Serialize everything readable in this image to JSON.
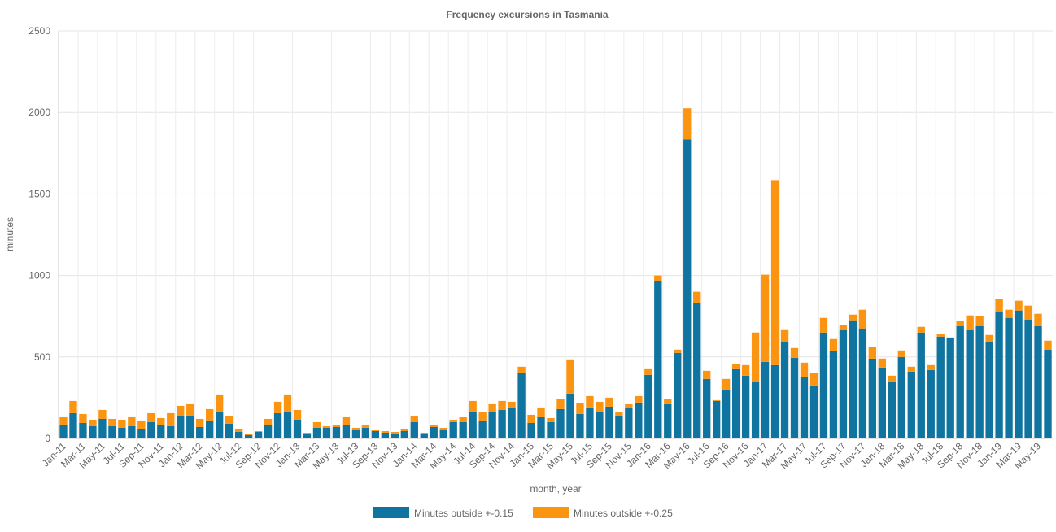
{
  "chart_data": {
    "type": "bar",
    "stacked": true,
    "title": "Frequency excursions in Tasmania",
    "xlabel": "month, year",
    "ylabel": "minutes",
    "ylim": [
      0,
      2500
    ],
    "yticks": [
      "0",
      "500",
      "1000",
      "1500",
      "2000",
      "2500"
    ],
    "grid": true,
    "legend_position": "bottom",
    "categories": [
      "Jan-11",
      "Feb-11",
      "Mar-11",
      "Apr-11",
      "May-11",
      "Jun-11",
      "Jul-11",
      "Aug-11",
      "Sep-11",
      "Oct-11",
      "Nov-11",
      "Dec-11",
      "Jan-12",
      "Feb-12",
      "Mar-12",
      "Apr-12",
      "May-12",
      "Jun-12",
      "Jul-12",
      "Aug-12",
      "Sep-12",
      "Oct-12",
      "Nov-12",
      "Dec-12",
      "Jan-13",
      "Feb-13",
      "Mar-13",
      "Apr-13",
      "May-13",
      "Jun-13",
      "Jul-13",
      "Aug-13",
      "Sep-13",
      "Oct-13",
      "Nov-13",
      "Dec-13",
      "Jan-14",
      "Feb-14",
      "Mar-14",
      "Apr-14",
      "May-14",
      "Jun-14",
      "Jul-14",
      "Aug-14",
      "Sep-14",
      "Oct-14",
      "Nov-14",
      "Dec-14",
      "Jan-15",
      "Feb-15",
      "Mar-15",
      "Apr-15",
      "May-15",
      "Jun-15",
      "Jul-15",
      "Aug-15",
      "Sep-15",
      "Oct-15",
      "Nov-15",
      "Dec-15",
      "Jan-16",
      "Feb-16",
      "Mar-16",
      "Apr-16",
      "May-16",
      "Jun-16",
      "Jul-16",
      "Aug-16",
      "Sep-16",
      "Oct-16",
      "Nov-16",
      "Dec-16",
      "Jan-17",
      "Feb-17",
      "Mar-17",
      "Apr-17",
      "May-17",
      "Jun-17",
      "Jul-17",
      "Aug-17",
      "Sep-17",
      "Oct-17",
      "Nov-17",
      "Dec-17",
      "Jan-18",
      "Feb-18",
      "Mar-18",
      "Apr-18",
      "May-18",
      "Jun-18",
      "Jul-18",
      "Aug-18",
      "Sep-18",
      "Oct-18",
      "Nov-18",
      "Dec-18",
      "Jan-19",
      "Feb-19",
      "Mar-19",
      "Apr-19",
      "May-19",
      "Jun-19"
    ],
    "series": [
      {
        "name": "Minutes outside +-0.15",
        "color": "#0f75a0",
        "values": [
          85,
          155,
          95,
          75,
          120,
          75,
          65,
          75,
          60,
          100,
          80,
          75,
          135,
          140,
          70,
          110,
          165,
          90,
          40,
          20,
          40,
          80,
          155,
          165,
          115,
          25,
          65,
          65,
          70,
          80,
          55,
          65,
          45,
          35,
          30,
          45,
          100,
          25,
          70,
          55,
          100,
          100,
          165,
          110,
          160,
          175,
          185,
          400,
          95,
          130,
          100,
          180,
          275,
          150,
          190,
          165,
          195,
          135,
          185,
          220,
          390,
          965,
          210,
          525,
          1835,
          830,
          365,
          230,
          300,
          425,
          385,
          345,
          470,
          450,
          590,
          495,
          375,
          325,
          650,
          535,
          665,
          725,
          675,
          490,
          435,
          350,
          500,
          410,
          650,
          420,
          625,
          615,
          690,
          665,
          690,
          595,
          780,
          740,
          785,
          730,
          690,
          545
        ]
      },
      {
        "name": "Minutes outside +-0.25",
        "color": "#fb9410",
        "values": [
          45,
          75,
          55,
          40,
          55,
          45,
          50,
          55,
          50,
          55,
          45,
          80,
          65,
          70,
          50,
          70,
          105,
          45,
          20,
          10,
          5,
          40,
          70,
          105,
          60,
          10,
          35,
          10,
          15,
          50,
          10,
          20,
          10,
          10,
          10,
          15,
          35,
          10,
          10,
          10,
          15,
          30,
          65,
          50,
          50,
          55,
          40,
          40,
          50,
          60,
          25,
          60,
          210,
          65,
          70,
          60,
          55,
          25,
          25,
          40,
          35,
          35,
          30,
          20,
          190,
          70,
          50,
          5,
          65,
          30,
          65,
          305,
          535,
          1135,
          75,
          60,
          90,
          75,
          90,
          75,
          30,
          35,
          115,
          70,
          55,
          35,
          40,
          30,
          35,
          30,
          15,
          5,
          30,
          90,
          60,
          40,
          75,
          50,
          60,
          85,
          75,
          55
        ]
      }
    ]
  }
}
